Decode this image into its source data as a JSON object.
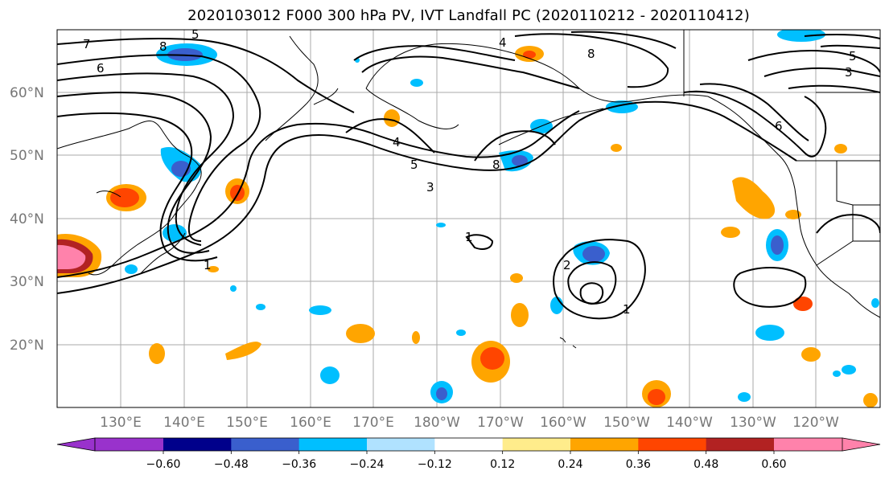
{
  "title": "2020103012 F000 300 hPa PV, IVT Landfall PC (2020110212 - 2020110412)",
  "lat_labels": [
    "60°N",
    "50°N",
    "40°N",
    "30°N",
    "20°N"
  ],
  "lon_labels": [
    "130°E",
    "140°E",
    "150°E",
    "160°E",
    "170°E",
    "180°W",
    "170°W",
    "160°W",
    "150°W",
    "140°W",
    "130°W",
    "120°W"
  ],
  "colorbar": {
    "colors": [
      "#9932CC",
      "#00008B",
      "#3A5FCD",
      "#00BFFF",
      "#B0E2FF",
      "#FFFFFF",
      "#FFEC8B",
      "#FFA500",
      "#FF4500",
      "#B22222",
      "#FF82AB"
    ],
    "tick_labels": [
      "−0.60",
      "−0.48",
      "−0.36",
      "−0.24",
      "−0.12",
      "0.12",
      "0.24",
      "0.36",
      "0.48",
      "0.60"
    ]
  },
  "contour_labels": [
    "7",
    "8",
    "6",
    "5",
    "4",
    "3",
    "2",
    "1"
  ]
}
